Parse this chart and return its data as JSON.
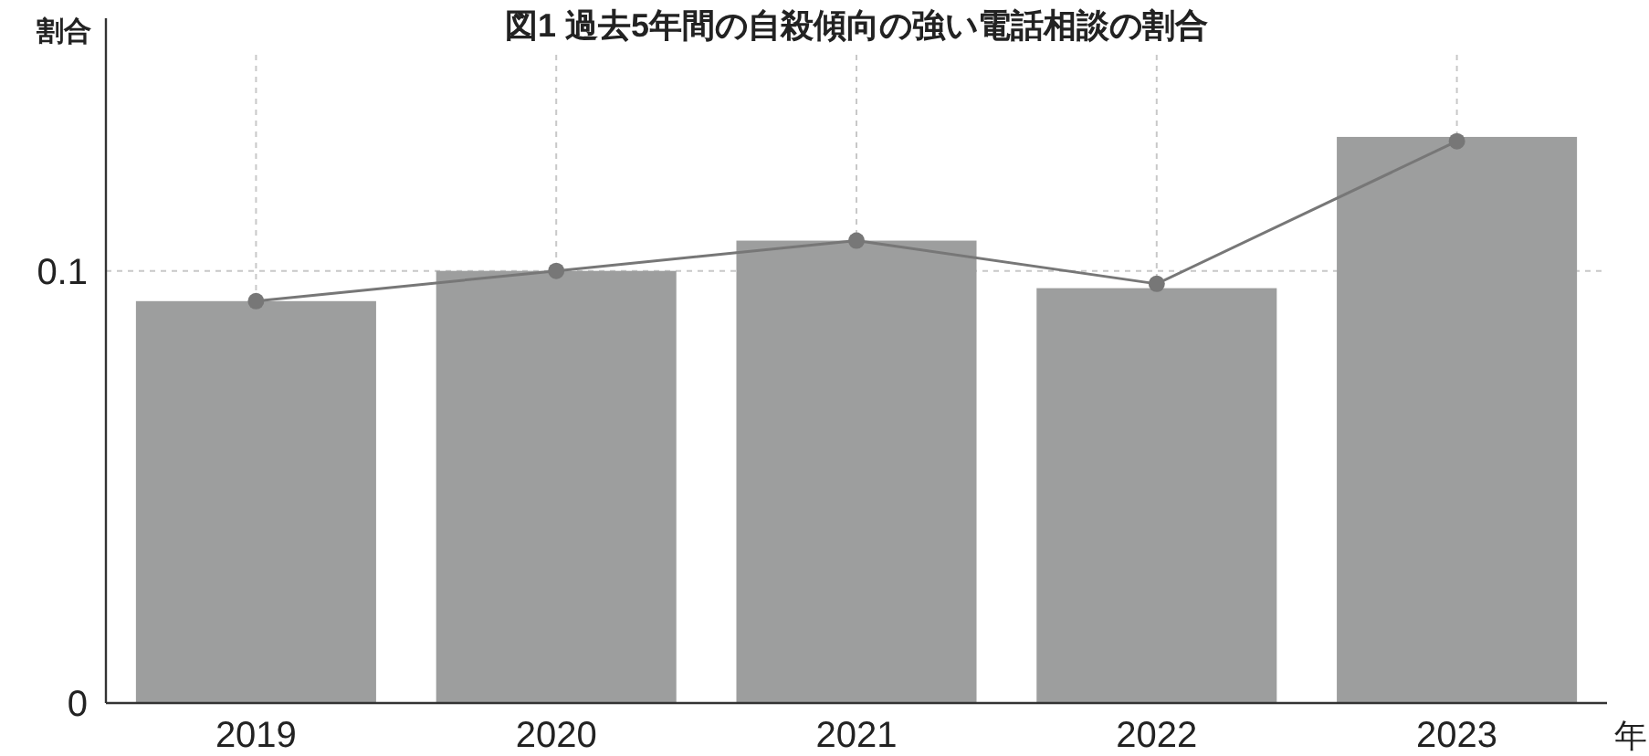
{
  "chart_data": {
    "type": "bar",
    "title": "図1 過去5年間の自殺傾向の強い電話相談の割合",
    "xlabel": "年",
    "ylabel": "割合",
    "categories": [
      "2019",
      "2020",
      "2021",
      "2022",
      "2023"
    ],
    "series": [
      {
        "color": "#9d9e9e",
        "values": [
          0.093,
          0.1,
          0.107,
          0.096,
          0.131
        ]
      },
      {
        "type": "line",
        "color": "#777777",
        "marker": "circle",
        "values": [
          0.093,
          0.1,
          0.107,
          0.097,
          0.13
        ]
      }
    ],
    "ylim": [
      0,
      0.15
    ],
    "yticks": [
      0,
      0.1
    ],
    "grid": true
  }
}
